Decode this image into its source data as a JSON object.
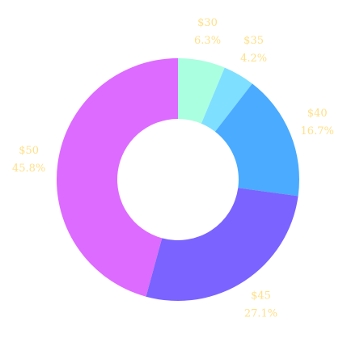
{
  "chart_data": {
    "type": "pie",
    "categories": [
      "$30",
      "$35",
      "$40",
      "$45",
      "$50"
    ],
    "values": [
      6.3,
      4.2,
      16.7,
      27.1,
      45.8
    ],
    "value_labels": [
      "6.3%",
      "4.2%",
      "16.7%",
      "27.1%",
      "45.8%"
    ],
    "colors": [
      "#aaffe0",
      "#7fdfff",
      "#4aabff",
      "#7a63ff",
      "#dd6bff"
    ],
    "donut": true
  }
}
